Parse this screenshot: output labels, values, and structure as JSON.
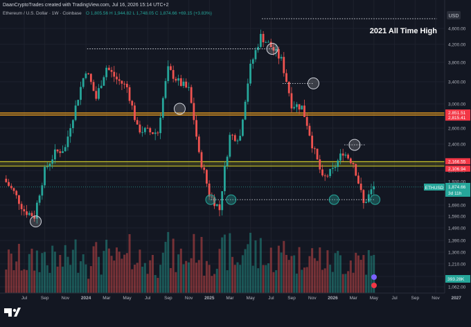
{
  "header": {
    "credit": "DaanCryptoTrades created with TradingView.com, Jul 16, 2026 15:14 UTC+2",
    "symbol_line": "Ethereum / U.S. Dollar · 1W · Coinbase",
    "ohlc": "O 1,805.56  H 1,944.82  L 1,748.05  C 1,874.66  +69.15 (+3.83%)"
  },
  "annotation": "2021 All Time High",
  "price_axis": {
    "currency": "USD",
    "ticks": [
      {
        "value": 4600,
        "label": "4,600.00"
      },
      {
        "value": 4200,
        "label": "4,200.00"
      },
      {
        "value": 3800,
        "label": "3,800.00"
      },
      {
        "value": 3400,
        "label": "3,400.00"
      },
      {
        "value": 3000,
        "label": "3,000.00"
      },
      {
        "value": 2600,
        "label": "2,600.00"
      },
      {
        "value": 2400,
        "label": "2,400.00"
      },
      {
        "value": 2050,
        "label": "2,050.00"
      },
      {
        "value": 1930,
        "label": "1,930.00"
      },
      {
        "value": 1690,
        "label": "1,690.00"
      },
      {
        "value": 1590,
        "label": "1,590.00"
      },
      {
        "value": 1490,
        "label": "1,490.00"
      },
      {
        "value": 1390,
        "label": "1,390.00"
      },
      {
        "value": 1300,
        "label": "1,300.00"
      },
      {
        "value": 1210,
        "label": "1,210.00"
      },
      {
        "value": 1130,
        "label": "1,130.00"
      },
      {
        "value": 1062,
        "label": "1,062.00"
      }
    ],
    "markers": [
      {
        "label": "2,851.51",
        "value": 2851.51,
        "color": "#f23645"
      },
      {
        "label": "2,815.41",
        "value": 2815.41,
        "color": "#f23645"
      },
      {
        "label": "2,166.55",
        "value": 2166.55,
        "color": "#f23645"
      },
      {
        "label": "2,106.94",
        "value": 2106.94,
        "color": "#f23645"
      }
    ],
    "last_price": {
      "ticker": "ETHUSD",
      "price": "1,874.66",
      "countdown": "3d 11h",
      "value": 1874.66
    },
    "volume_label": "393.28K"
  },
  "time_axis": [
    "Jul",
    "Sep",
    "Nov",
    "2024",
    "Mar",
    "May",
    "Jul",
    "Sep",
    "Nov",
    "2025",
    "Mar",
    "May",
    "Jul",
    "Sep",
    "Nov",
    "2026",
    "Mar",
    "May",
    "Jul",
    "Sep",
    "Nov",
    "2027"
  ],
  "chart_data": {
    "type": "candlestick",
    "title": "Ethereum / U.S. Dollar · 1W · Coinbase",
    "x_range": [
      "2023-07",
      "2027-01"
    ],
    "ylim": [
      1030,
      4780
    ],
    "grid": true,
    "horizontal_zones": [
      {
        "upper": 2851.51,
        "lower": 2815.41,
        "color": "#f5a623"
      },
      {
        "upper": 2166.55,
        "lower": 2106.94,
        "color": "#c9c229"
      }
    ],
    "dotted_levels": [
      {
        "value": 4780,
        "from": "2025-08",
        "to": "2027-01"
      },
      {
        "value": 4100,
        "from": "2024-03",
        "to": "2025-09"
      },
      {
        "value": 3370,
        "from": "2025-10",
        "to": "2026-01"
      },
      {
        "value": 2390,
        "from": "2026-04",
        "to": "2026-06"
      },
      {
        "value": 1745,
        "from": "2025-03",
        "to": "2026-07"
      }
    ],
    "circled_points": [
      {
        "date": "2023-10",
        "price": 1545,
        "color": "grey"
      },
      {
        "date": "2024-12",
        "price": 2920,
        "color": "grey"
      },
      {
        "date": "2025-09",
        "price": 4100,
        "color": "grey"
      },
      {
        "date": "2026-01",
        "price": 3370,
        "color": "grey"
      },
      {
        "date": "2026-05",
        "price": 2390,
        "color": "grey"
      },
      {
        "date": "2025-03",
        "price": 1745,
        "color": "green"
      },
      {
        "date": "2025-05",
        "price": 1745,
        "color": "green"
      },
      {
        "date": "2026-03",
        "price": 1745,
        "color": "green"
      },
      {
        "date": "2026-07",
        "price": 1745,
        "color": "green"
      }
    ],
    "last_close": 1874.66,
    "series": [
      {
        "name": "ETHUSD",
        "points": [
          [
            "2023-07",
            1960
          ],
          [
            "2023-08",
            1820
          ],
          [
            "2023-09",
            1640
          ],
          [
            "2023-10",
            1590
          ],
          [
            "2023-11",
            2050
          ],
          [
            "2023-12",
            2280
          ],
          [
            "2024-01",
            2350
          ],
          [
            "2024-02",
            2950
          ],
          [
            "2024-03",
            3650
          ],
          [
            "2024-04",
            3100
          ],
          [
            "2024-05",
            3700
          ],
          [
            "2024-06",
            3450
          ],
          [
            "2024-07",
            3300
          ],
          [
            "2024-08",
            2600
          ],
          [
            "2024-09",
            2550
          ],
          [
            "2024-10",
            2550
          ],
          [
            "2024-11",
            3650
          ],
          [
            "2024-12",
            3400
          ],
          [
            "2025-01",
            3250
          ],
          [
            "2025-02",
            2250
          ],
          [
            "2025-03",
            1800
          ],
          [
            "2025-04",
            1650
          ],
          [
            "2025-05",
            2500
          ],
          [
            "2025-06",
            2500
          ],
          [
            "2025-07",
            3700
          ],
          [
            "2025-08",
            4400
          ],
          [
            "2025-09",
            4150
          ],
          [
            "2025-10",
            3850
          ],
          [
            "2025-11",
            3000
          ],
          [
            "2025-12",
            2950
          ],
          [
            "2026-01",
            2400
          ],
          [
            "2026-02",
            1950
          ],
          [
            "2026-03",
            2050
          ],
          [
            "2026-04",
            2300
          ],
          [
            "2026-05",
            2150
          ],
          [
            "2026-06",
            1700
          ],
          [
            "2026-07",
            1874.66
          ]
        ]
      }
    ]
  }
}
